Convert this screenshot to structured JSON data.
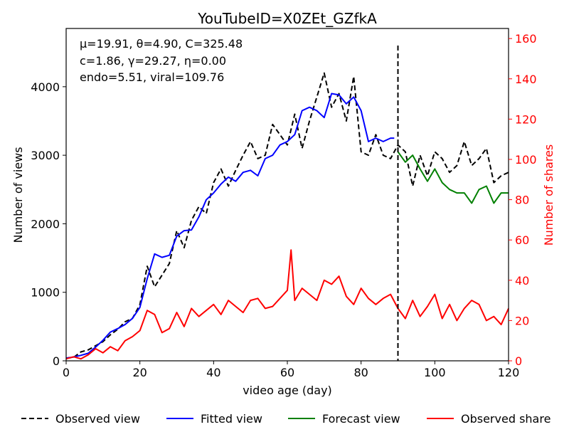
{
  "chart_data": {
    "type": "line",
    "title": "YouTubeID=X0ZEt_GZfkA",
    "xlabel": "video age (day)",
    "ylabel": "Number of views",
    "y2label": "Number of shares",
    "xlim": [
      0,
      120
    ],
    "ylim": [
      0,
      4850
    ],
    "y2lim": [
      0,
      165
    ],
    "xticks": [
      0,
      20,
      40,
      60,
      80,
      100,
      120
    ],
    "yticks": [
      0,
      1000,
      2000,
      3000,
      4000
    ],
    "y2ticks": [
      0,
      20,
      40,
      60,
      80,
      100,
      120,
      140,
      160
    ],
    "annotations": [
      "μ=19.91, θ=4.90, C=325.48",
      "c=1.86, γ=29.27, η=0.00",
      "endo=5.51, viral=109.76"
    ],
    "cutoff_day": 90,
    "series": [
      {
        "name": "Observed view",
        "axis": "left",
        "color": "#000000",
        "style": "dashed",
        "x": [
          0,
          2,
          4,
          6,
          8,
          10,
          12,
          14,
          16,
          18,
          20,
          22,
          24,
          26,
          28,
          30,
          32,
          34,
          36,
          38,
          40,
          42,
          44,
          46,
          48,
          50,
          52,
          54,
          56,
          58,
          60,
          62,
          64,
          66,
          68,
          70,
          72,
          74,
          76,
          78,
          80,
          82,
          84,
          86,
          88,
          90,
          92,
          94,
          96,
          98,
          100,
          102,
          104,
          106,
          108,
          110,
          112,
          114,
          116,
          118,
          120
        ],
        "values": [
          40,
          50,
          130,
          160,
          220,
          280,
          380,
          460,
          570,
          620,
          820,
          1380,
          1080,
          1250,
          1420,
          1900,
          1650,
          2050,
          2250,
          2150,
          2600,
          2800,
          2550,
          2780,
          3000,
          3200,
          2950,
          3000,
          3450,
          3300,
          3150,
          3600,
          3100,
          3500,
          3850,
          4200,
          3700,
          3900,
          3500,
          4150,
          3050,
          3000,
          3300,
          3000,
          2950,
          3150,
          3050,
          2550,
          3000,
          2700,
          3050,
          2950,
          2750,
          2850,
          3200,
          2850,
          2950,
          3100,
          2600,
          2700,
          2750
        ]
      },
      {
        "name": "Fitted view",
        "axis": "left",
        "color": "#0000ff",
        "style": "solid",
        "x": [
          0,
          2,
          4,
          6,
          8,
          10,
          12,
          14,
          16,
          18,
          20,
          22,
          24,
          26,
          28,
          30,
          32,
          34,
          36,
          38,
          40,
          42,
          44,
          46,
          48,
          50,
          52,
          54,
          56,
          58,
          60,
          62,
          64,
          66,
          68,
          70,
          72,
          74,
          76,
          78,
          80,
          82,
          84,
          86,
          88,
          89
        ],
        "values": [
          40,
          55,
          80,
          110,
          200,
          300,
          420,
          470,
          530,
          620,
          780,
          1200,
          1560,
          1510,
          1540,
          1820,
          1900,
          1910,
          2100,
          2350,
          2450,
          2580,
          2680,
          2620,
          2750,
          2780,
          2700,
          2950,
          3000,
          3150,
          3200,
          3300,
          3650,
          3700,
          3650,
          3550,
          3900,
          3880,
          3750,
          3850,
          3650,
          3200,
          3250,
          3200,
          3250,
          3250
        ]
      },
      {
        "name": "Forecast view",
        "axis": "left",
        "color": "#008000",
        "style": "solid",
        "x": [
          90,
          92,
          94,
          96,
          98,
          100,
          102,
          104,
          106,
          108,
          110,
          112,
          114,
          116,
          118,
          120
        ],
        "values": [
          3050,
          2900,
          3000,
          2800,
          2620,
          2800,
          2600,
          2500,
          2450,
          2450,
          2300,
          2500,
          2550,
          2300,
          2450,
          2450
        ]
      },
      {
        "name": "Observed share",
        "axis": "right",
        "color": "#ff0000",
        "style": "solid",
        "x": [
          0,
          2,
          4,
          6,
          8,
          10,
          12,
          14,
          16,
          18,
          20,
          22,
          24,
          26,
          28,
          30,
          32,
          34,
          36,
          38,
          40,
          42,
          44,
          46,
          48,
          50,
          52,
          54,
          56,
          58,
          60,
          61,
          62,
          64,
          66,
          68,
          70,
          72,
          74,
          76,
          78,
          80,
          82,
          84,
          86,
          88,
          90,
          92,
          94,
          96,
          98,
          100,
          102,
          104,
          106,
          108,
          110,
          112,
          114,
          116,
          118,
          120
        ],
        "values": [
          1,
          2,
          1,
          3,
          6,
          4,
          7,
          5,
          10,
          12,
          15,
          25,
          23,
          14,
          16,
          24,
          17,
          26,
          22,
          25,
          28,
          23,
          30,
          27,
          24,
          30,
          31,
          26,
          27,
          31,
          35,
          55,
          30,
          36,
          33,
          30,
          40,
          38,
          42,
          32,
          28,
          36,
          31,
          28,
          31,
          33,
          26,
          21,
          30,
          22,
          27,
          33,
          21,
          28,
          20,
          26,
          30,
          28,
          20,
          22,
          18,
          26
        ]
      }
    ]
  },
  "legend": [
    {
      "label": "Observed view"
    },
    {
      "label": "Fitted view"
    },
    {
      "label": "Forecast view"
    },
    {
      "label": "Observed share"
    }
  ]
}
